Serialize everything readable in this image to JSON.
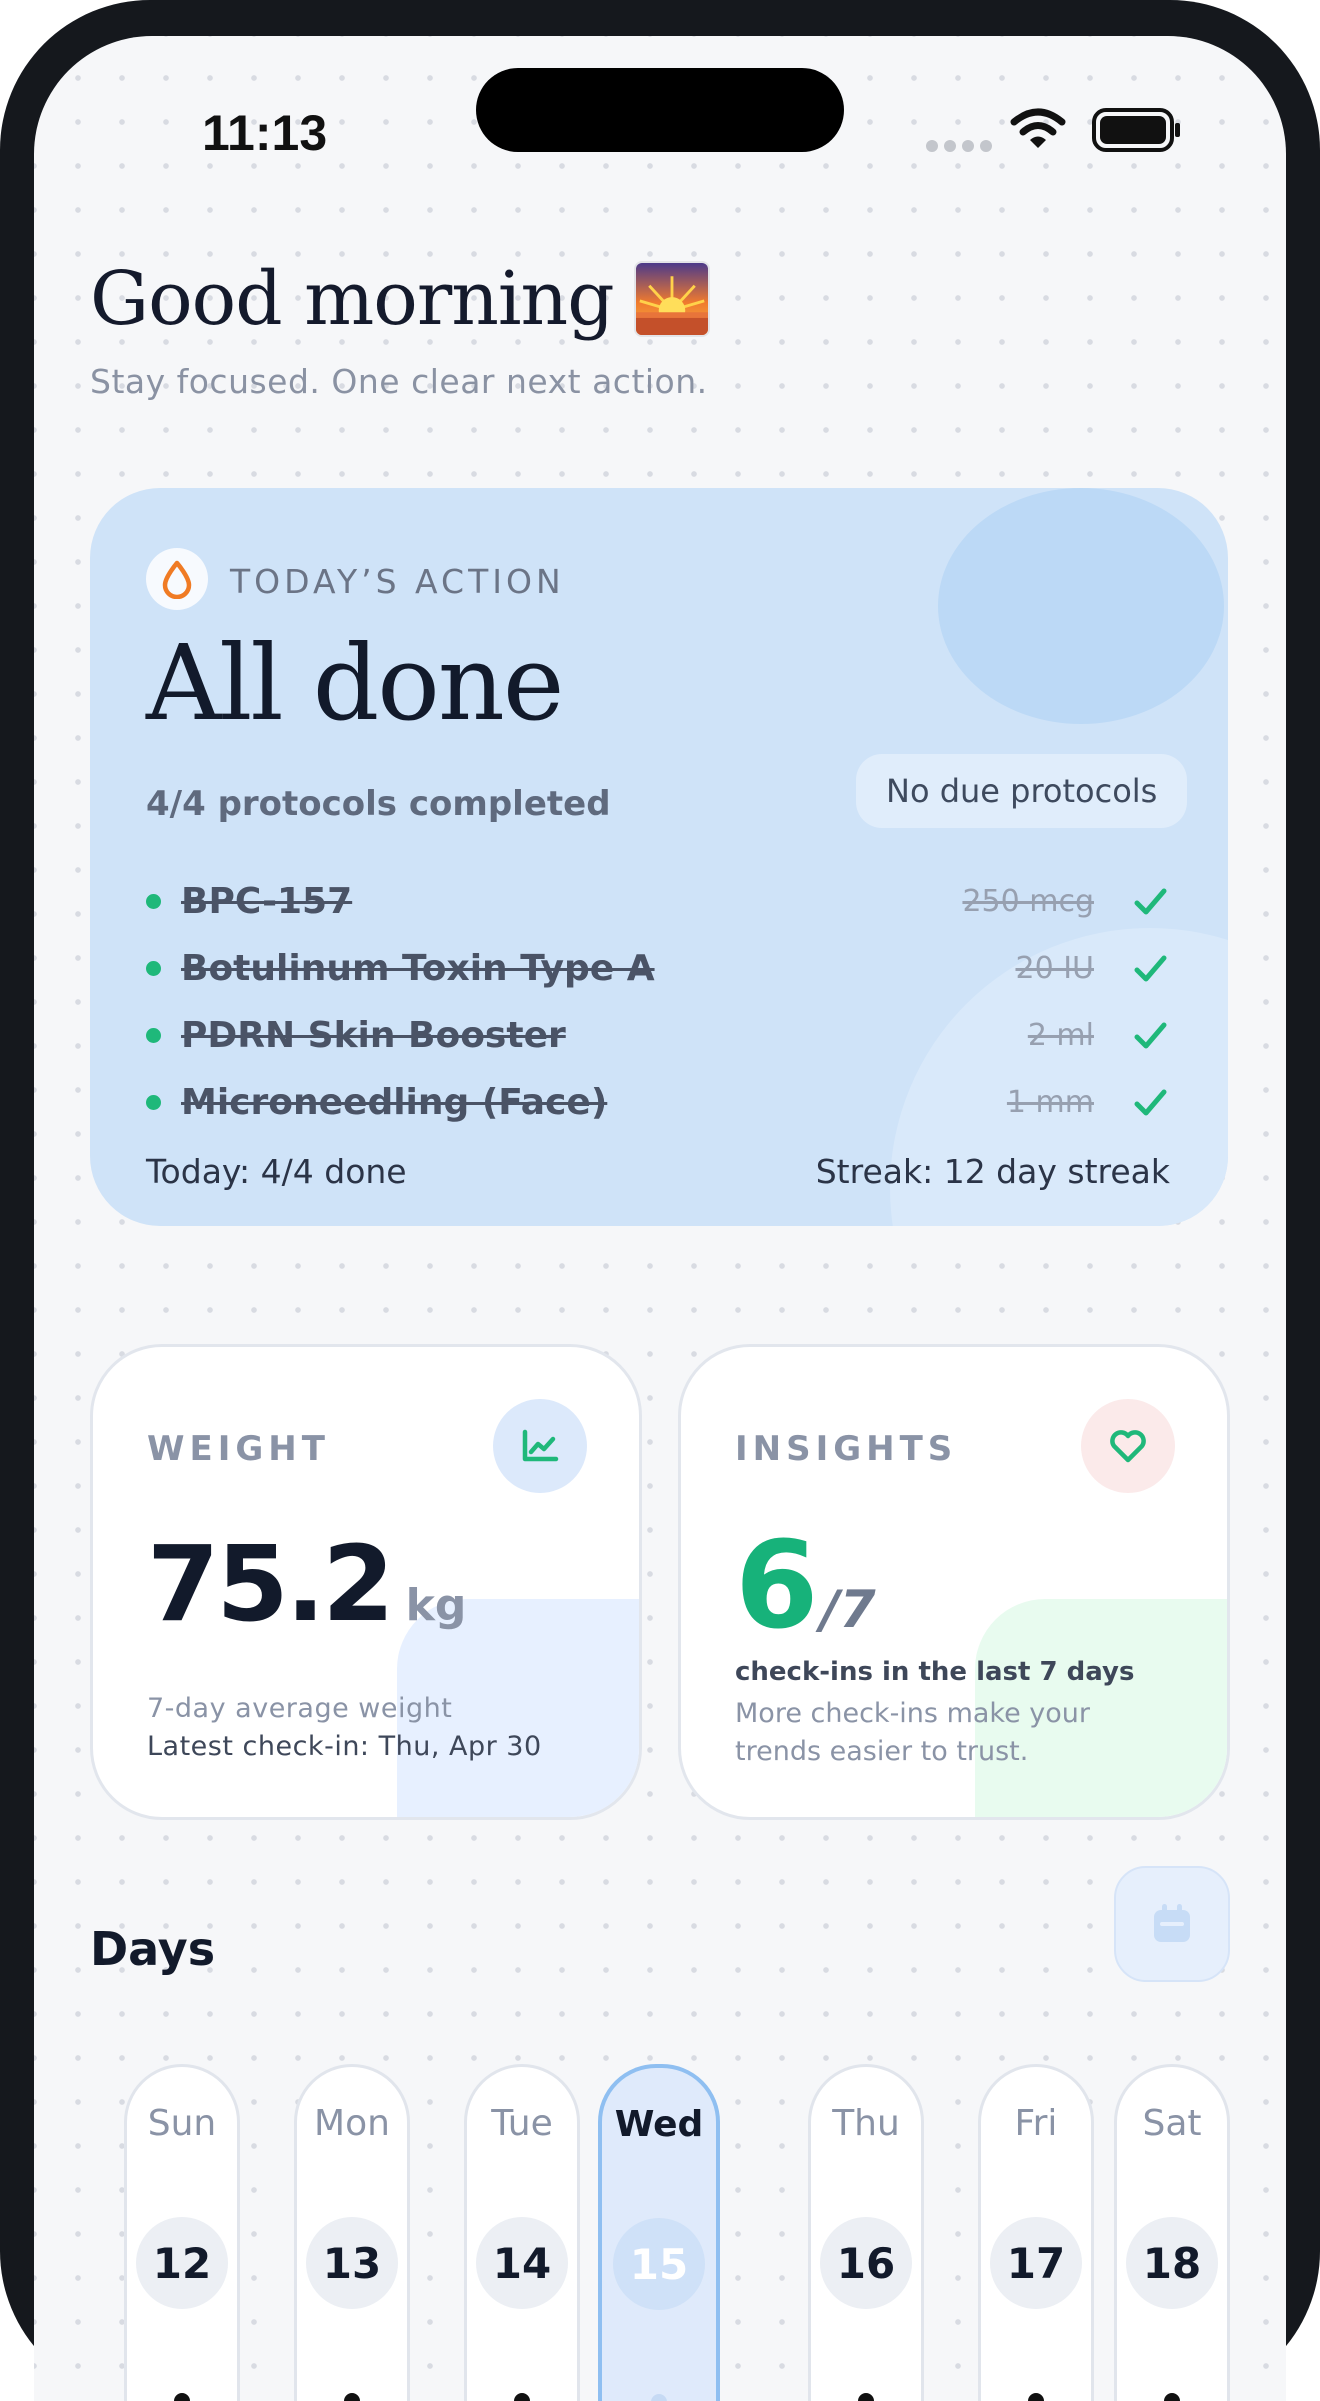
{
  "status_bar": {
    "time": "11:13"
  },
  "header": {
    "greeting": "Good morning",
    "subtitle": "Stay focused. One clear next action."
  },
  "today_card": {
    "label": "TODAY’S ACTION",
    "title": "All done",
    "progress": "4/4 protocols completed",
    "due_badge": "No due protocols",
    "protocols": [
      {
        "name": "BPC-157",
        "dose": "250 mcg"
      },
      {
        "name": "Botulinum Toxin Type A",
        "dose": "20 IU"
      },
      {
        "name": "PDRN Skin Booster",
        "dose": "2 ml"
      },
      {
        "name": "Microneedling (Face)",
        "dose": "1 mm"
      }
    ],
    "today_summary": "Today: 4/4 done",
    "streak": "Streak: 12 day streak"
  },
  "weight_card": {
    "title": "WEIGHT",
    "value": "75.2",
    "unit": "kg",
    "caption": "7-day average weight",
    "latest": "Latest check-in: Thu, Apr 30"
  },
  "insights_card": {
    "title": "INSIGHTS",
    "value": "6",
    "denominator": "/7",
    "caption": "check-ins in the last 7 days",
    "note": "More check-ins make your trends easier to trust."
  },
  "days": {
    "title": "Days",
    "items": [
      {
        "name": "Sun",
        "date": "12",
        "selected": false
      },
      {
        "name": "Mon",
        "date": "13",
        "selected": false
      },
      {
        "name": "Tue",
        "date": "14",
        "selected": false
      },
      {
        "name": "Wed",
        "date": "15",
        "selected": true
      },
      {
        "name": "Thu",
        "date": "16",
        "selected": false
      },
      {
        "name": "Fri",
        "date": "17",
        "selected": false
      },
      {
        "name": "Sat",
        "date": "18",
        "selected": false
      }
    ]
  },
  "colors": {
    "accent_green": "#17b27a",
    "card_blue": "#cfe3f8",
    "text_dark": "#121a2b"
  }
}
